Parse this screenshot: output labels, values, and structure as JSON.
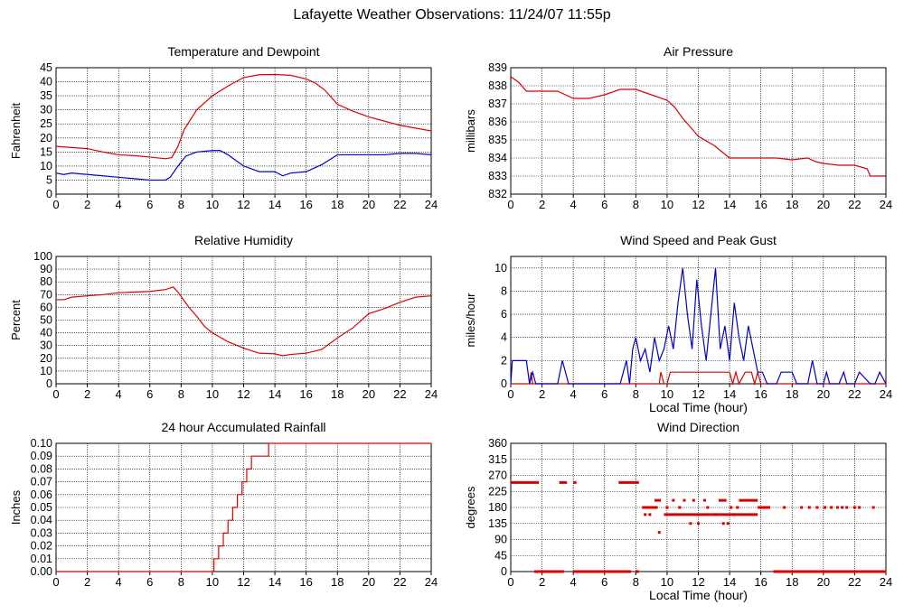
{
  "title": "Lafayette Weather Observations: 11/24/07 11:55p",
  "colors": {
    "red": "#dd0000",
    "blue": "#0000cc",
    "grid": "#000000"
  },
  "chart_data": [
    {
      "id": "temp",
      "type": "line",
      "title": "Temperature and Dewpoint",
      "xlabel": "",
      "ylabel": "Fahrenheit",
      "xlim": [
        0,
        24
      ],
      "ylim": [
        0,
        45
      ],
      "xticks": [
        0,
        2,
        4,
        6,
        8,
        10,
        12,
        14,
        16,
        18,
        20,
        22,
        24
      ],
      "yticks": [
        0,
        5,
        10,
        15,
        20,
        25,
        30,
        35,
        40,
        45
      ],
      "series": [
        {
          "color": "#dd0000",
          "x": [
            0,
            1,
            2,
            3,
            4,
            5,
            6,
            7,
            7.4,
            7.8,
            8.2,
            9,
            10,
            11,
            12,
            13,
            14,
            15,
            16,
            16.6,
            17.2,
            18,
            19,
            20,
            21,
            22,
            23,
            24
          ],
          "y": [
            17,
            16.6,
            16.2,
            15,
            14,
            13.7,
            13.2,
            12.6,
            13,
            17,
            23,
            30,
            35,
            38.5,
            41.5,
            42.5,
            42.6,
            42.3,
            41,
            39.5,
            37,
            32,
            29.5,
            27.5,
            26,
            24.5,
            23.5,
            22.5
          ]
        },
        {
          "color": "#0000cc",
          "x": [
            0,
            0.5,
            1,
            2,
            3,
            4,
            5,
            6,
            7,
            7.3,
            7.8,
            8.3,
            9,
            10,
            10.5,
            11,
            12,
            13,
            14,
            14.5,
            15,
            16,
            17,
            18,
            19,
            20,
            21,
            22,
            23,
            24
          ],
          "y": [
            7.5,
            7,
            7.5,
            7,
            6.5,
            6,
            5.5,
            5,
            5,
            6,
            10,
            13.5,
            15,
            15.5,
            15.5,
            14,
            10,
            8,
            8,
            6.5,
            7.5,
            8,
            10.5,
            14,
            14,
            14,
            14,
            14.5,
            14.5,
            14
          ]
        }
      ]
    },
    {
      "id": "pressure",
      "type": "line",
      "title": "Air Pressure",
      "xlabel": "",
      "ylabel": "millibars",
      "xlim": [
        0,
        24
      ],
      "ylim": [
        832,
        839
      ],
      "xticks": [
        0,
        2,
        4,
        6,
        8,
        10,
        12,
        14,
        16,
        18,
        20,
        22,
        24
      ],
      "yticks": [
        832,
        833,
        834,
        835,
        836,
        837,
        838,
        839
      ],
      "series": [
        {
          "color": "#dd0000",
          "x": [
            0,
            0.5,
            1,
            2,
            3,
            4,
            5,
            6,
            7,
            8,
            9,
            10,
            10.5,
            11,
            12,
            13,
            14,
            15,
            16,
            17,
            18,
            19,
            19.5,
            20,
            21,
            22,
            22.8,
            23,
            24
          ],
          "y": [
            838.5,
            838.2,
            837.7,
            837.7,
            837.7,
            837.3,
            837.3,
            837.5,
            837.8,
            837.8,
            837.5,
            837.2,
            836.8,
            836.2,
            835.2,
            834.7,
            834,
            834,
            834,
            834,
            833.9,
            834,
            833.8,
            833.7,
            833.6,
            833.6,
            833.4,
            833,
            833
          ]
        }
      ]
    },
    {
      "id": "humidity",
      "type": "line",
      "title": "Relative Humidity",
      "xlabel": "",
      "ylabel": "Percent",
      "xlim": [
        0,
        24
      ],
      "ylim": [
        0,
        100
      ],
      "xticks": [
        0,
        2,
        4,
        6,
        8,
        10,
        12,
        14,
        16,
        18,
        20,
        22,
        24
      ],
      "yticks": [
        0,
        10,
        20,
        30,
        40,
        50,
        60,
        70,
        80,
        90,
        100
      ],
      "series": [
        {
          "color": "#dd0000",
          "x": [
            0,
            0.5,
            1,
            2,
            3,
            4,
            5,
            6,
            7,
            7.5,
            7.8,
            8.5,
            9,
            9.5,
            10,
            11,
            12,
            13,
            14,
            14.5,
            15,
            16,
            17,
            18,
            19,
            20,
            21,
            22,
            23,
            24
          ],
          "y": [
            66,
            66,
            68,
            69,
            70,
            71.5,
            72,
            72.5,
            74,
            76,
            72,
            60,
            53,
            45,
            40,
            33,
            28,
            24,
            23.5,
            22,
            23,
            24,
            27,
            36,
            44,
            55,
            59,
            64,
            68,
            69
          ]
        }
      ]
    },
    {
      "id": "wind",
      "type": "line",
      "title": "Wind Speed and Peak Gust",
      "xlabel": "Local Time (hour)",
      "ylabel": "miles/hour",
      "xlim": [
        0,
        24
      ],
      "ylim": [
        0,
        11
      ],
      "xticks": [
        0,
        2,
        4,
        6,
        8,
        10,
        12,
        14,
        16,
        18,
        20,
        22,
        24
      ],
      "yticks": [
        0,
        2,
        4,
        6,
        8,
        10
      ],
      "series": [
        {
          "color": "#dd0000",
          "x": [
            0,
            1.2,
            1.3,
            1.4,
            1.5,
            9.5,
            9.6,
            9.8,
            10,
            10.2,
            10.3,
            11,
            11.5,
            12,
            13,
            14,
            14.2,
            14.4,
            14.6,
            15,
            15.4,
            15.6,
            15.8,
            16,
            24
          ],
          "y": [
            0,
            0,
            1,
            0,
            0,
            0,
            1,
            0,
            0,
            1,
            1,
            1,
            1,
            1,
            1,
            1,
            0,
            1,
            0,
            1,
            1,
            0,
            1,
            0,
            0
          ]
        },
        {
          "color": "#0000cc",
          "x": [
            0,
            0.1,
            0.2,
            1,
            1.2,
            1.4,
            1.6,
            3,
            3.3,
            3.5,
            3.7,
            4,
            7,
            7.2,
            7.4,
            7.6,
            7.8,
            8,
            8.3,
            8.6,
            8.9,
            9.2,
            9.5,
            9.8,
            10.1,
            10.4,
            10.7,
            11,
            11.3,
            11.6,
            11.9,
            12.2,
            12.5,
            12.8,
            13.1,
            13.4,
            13.7,
            14,
            14.3,
            14.6,
            14.9,
            15.2,
            15.5,
            15.8,
            16.1,
            16.4,
            17,
            17.3,
            18,
            18.3,
            19,
            19.3,
            19.6,
            20,
            20.2,
            20.4,
            21,
            21.3,
            21.5,
            22,
            22.3,
            23,
            23.3,
            23.6,
            24
          ],
          "y": [
            0,
            2,
            2,
            2,
            0,
            1,
            0,
            0,
            2,
            1,
            0,
            0,
            0,
            1,
            2,
            0,
            3,
            4,
            2,
            3,
            1,
            4,
            2,
            3,
            5,
            3,
            7,
            10,
            6,
            3,
            9,
            5,
            2,
            6,
            10,
            3,
            5,
            2,
            7,
            4,
            2,
            5,
            3,
            1,
            1,
            0,
            0,
            1,
            1,
            0,
            0,
            2,
            0,
            0,
            1,
            0,
            0,
            1,
            0,
            0,
            1,
            0,
            0,
            1,
            0
          ]
        }
      ]
    },
    {
      "id": "rain",
      "type": "line",
      "title": "24 hour Accumulated Rainfall",
      "xlabel": "",
      "ylabel": "Inches",
      "xlim": [
        0,
        24
      ],
      "ylim": [
        0,
        0.1
      ],
      "xticks": [
        0,
        2,
        4,
        6,
        8,
        10,
        12,
        14,
        16,
        18,
        20,
        22,
        24
      ],
      "yticks": [
        0,
        0.01,
        0.02,
        0.03,
        0.04,
        0.05,
        0.06,
        0.07,
        0.08,
        0.09,
        0.1
      ],
      "step": true,
      "series": [
        {
          "color": "#dd0000",
          "x": [
            0,
            9.6,
            10.1,
            10.4,
            10.7,
            11,
            11.3,
            11.6,
            11.9,
            12.2,
            12.5,
            12.8,
            13.3,
            13.6,
            14,
            14.4,
            24
          ],
          "y": [
            0,
            0,
            0.01,
            0.02,
            0.03,
            0.04,
            0.05,
            0.06,
            0.07,
            0.08,
            0.09,
            0.09,
            0.09,
            0.1,
            0.1,
            0.1,
            0.1
          ]
        }
      ]
    },
    {
      "id": "direction",
      "type": "scatter",
      "title": "Wind Direction",
      "xlabel": "Local Time (hour)",
      "ylabel": "degrees",
      "xlim": [
        0,
        24
      ],
      "ylim": [
        0,
        360
      ],
      "xticks": [
        0,
        2,
        4,
        6,
        8,
        10,
        12,
        14,
        16,
        18,
        20,
        22,
        24
      ],
      "yticks": [
        0,
        45,
        90,
        135,
        180,
        225,
        270,
        315,
        360
      ],
      "series": [
        {
          "color": "#dd0000",
          "segments": [
            {
              "x0": 0,
              "x1": 1.8,
              "y": 250
            },
            {
              "x0": 3.1,
              "x1": 3.6,
              "y": 250
            },
            {
              "x0": 4,
              "x1": 4.2,
              "y": 250
            },
            {
              "x0": 6.9,
              "x1": 8.2,
              "y": 250
            },
            {
              "x0": 8.4,
              "x1": 9.4,
              "y": 180
            },
            {
              "x0": 9.2,
              "x1": 9.6,
              "y": 200
            },
            {
              "x0": 9.8,
              "x1": 15.8,
              "y": 160
            },
            {
              "x0": 15.8,
              "x1": 16.6,
              "y": 180
            },
            {
              "x0": 1.5,
              "x1": 3.4,
              "y": 0
            },
            {
              "x0": 4,
              "x1": 7.7,
              "y": 0
            },
            {
              "x0": 8,
              "x1": 8.2,
              "y": 0
            },
            {
              "x0": 16.8,
              "x1": 24,
              "y": 0
            },
            {
              "x0": 14.6,
              "x1": 15.8,
              "y": 200
            },
            {
              "x0": 13.3,
              "x1": 13.8,
              "y": 200
            }
          ],
          "points": [
            [
              8.6,
              160
            ],
            [
              8.9,
              160
            ],
            [
              9.5,
              110
            ],
            [
              10,
              180
            ],
            [
              10.4,
              200
            ],
            [
              10.8,
              180
            ],
            [
              11.1,
              200
            ],
            [
              11.5,
              135
            ],
            [
              11.7,
              200
            ],
            [
              12,
              135
            ],
            [
              12.4,
              200
            ],
            [
              12.6,
              180
            ],
            [
              13.1,
              160
            ],
            [
              13.6,
              135
            ],
            [
              13.9,
              135
            ],
            [
              14.1,
              180
            ],
            [
              14.3,
              160
            ],
            [
              14.5,
              180
            ],
            [
              17.5,
              180
            ],
            [
              18.6,
              180
            ],
            [
              19.1,
              180
            ],
            [
              19.6,
              180
            ],
            [
              20.1,
              180
            ],
            [
              20.5,
              180
            ],
            [
              20.9,
              180
            ],
            [
              21.2,
              180
            ],
            [
              21.5,
              180
            ],
            [
              22,
              180
            ],
            [
              22.3,
              180
            ],
            [
              23.2,
              180
            ]
          ]
        }
      ]
    }
  ]
}
